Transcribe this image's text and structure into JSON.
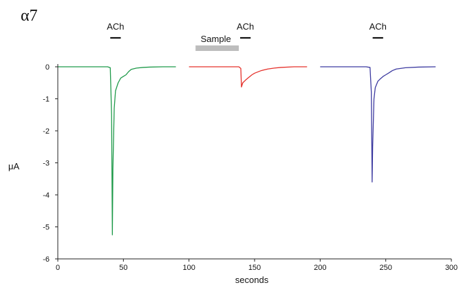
{
  "chart_data": {
    "type": "line",
    "panel_label": "α7",
    "xlabel": "seconds",
    "ylabel": "μA",
    "xlim": [
      0,
      300
    ],
    "ylim": [
      -6,
      0
    ],
    "x_ticks": [
      0,
      50,
      100,
      150,
      200,
      250,
      300
    ],
    "y_ticks": [
      0,
      -1,
      -2,
      -3,
      -4,
      -5,
      -6
    ],
    "grid": false,
    "series": [
      {
        "color": "#1f9a4a",
        "x": [
          0,
          38,
          40,
          41,
          41.6,
          42,
          43,
          44,
          46,
          48,
          50,
          52,
          54,
          56,
          60,
          65,
          70,
          80,
          90
        ],
        "values": [
          0,
          0,
          -0.03,
          -1.5,
          -5.25,
          -3.2,
          -1.3,
          -0.75,
          -0.5,
          -0.35,
          -0.3,
          -0.25,
          -0.15,
          -0.08,
          -0.04,
          -0.02,
          -0.01,
          0,
          0
        ]
      },
      {
        "color": "#e5312b",
        "x": [
          100,
          130,
          135,
          138,
          139.5,
          140,
          141,
          143,
          145,
          148,
          150,
          155,
          160,
          165,
          170,
          180,
          190
        ],
        "values": [
          0,
          0,
          0,
          0,
          -0.05,
          -0.63,
          -0.5,
          -0.42,
          -0.35,
          -0.25,
          -0.2,
          -0.12,
          -0.07,
          -0.04,
          -0.02,
          0,
          0
        ]
      },
      {
        "color": "#3c3aa0",
        "x": [
          200,
          230,
          235,
          238,
          239,
          239.6,
          240,
          241,
          242,
          244,
          246,
          248,
          250,
          252,
          255,
          258,
          265,
          275,
          288
        ],
        "values": [
          0,
          0,
          0,
          -0.02,
          -0.8,
          -3.6,
          -2.5,
          -1.0,
          -0.65,
          -0.45,
          -0.37,
          -0.3,
          -0.25,
          -0.2,
          -0.12,
          -0.07,
          -0.03,
          -0.01,
          0
        ]
      }
    ],
    "annotations": [
      {
        "label": "ACh",
        "bar": [
          40,
          48
        ]
      },
      {
        "label": "ACh",
        "bar": [
          139,
          147
        ]
      },
      {
        "label": "ACh",
        "bar": [
          240,
          248
        ]
      },
      {
        "label": "Sample",
        "bar": [
          105,
          138
        ]
      }
    ]
  }
}
